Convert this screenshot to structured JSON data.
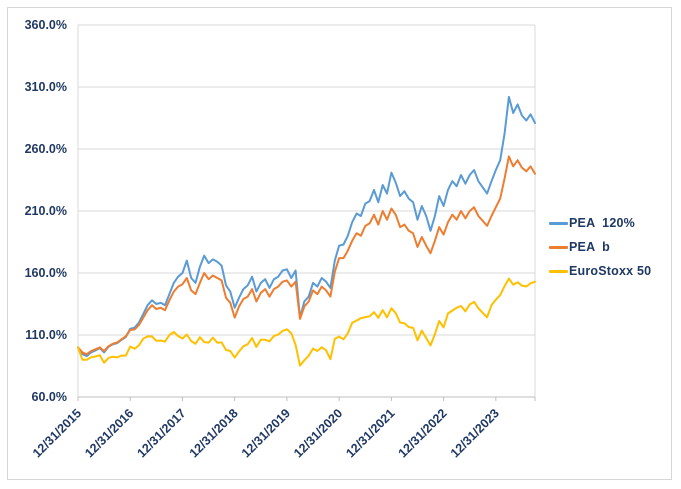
{
  "window": {
    "background": "#FFFFFF",
    "border_color": "#D6D6D6"
  },
  "legend": {
    "position": "right"
  },
  "chart_data": {
    "type": "line",
    "title": "",
    "xlabel": "",
    "ylabel": "",
    "x_start_label": "12/31/2015",
    "points_per_year": 12,
    "x_tick_labels": [
      "12/31/2015",
      "12/31/2016",
      "12/31/2017",
      "12/31/2018",
      "12/31/2019",
      "12/31/2020",
      "12/31/2021",
      "12/31/2022",
      "12/31/2023"
    ],
    "x_tick_rotation_deg": -45,
    "y_axis": {
      "min": 60,
      "max": 360,
      "step": 50,
      "tick_labels": [
        "60.0%",
        "110.0%",
        "160.0%",
        "210.0%",
        "260.0%",
        "310.0%",
        "360.0%"
      ]
    },
    "grid": true,
    "legend_position": "right",
    "axis_label_color": "#1F3864",
    "gridline_color": "#D9D9D9",
    "axis_line_color": "#BFBFBF",
    "series": [
      {
        "name": "PEA  120%",
        "color": "#5B9BD5",
        "values": [
          100,
          94.5,
          93,
          96,
          97.5,
          99.5,
          96,
          100.5,
          102.5,
          103.5,
          106,
          108.5,
          115,
          116,
          120,
          127,
          134,
          138,
          135,
          136,
          134,
          143,
          152,
          157,
          160,
          170,
          156,
          152,
          165,
          174,
          168,
          171,
          169,
          166,
          150,
          145,
          132,
          140,
          147,
          150,
          157,
          145,
          152,
          155,
          148,
          155,
          157,
          162,
          163,
          156,
          162,
          124,
          137,
          141,
          152,
          149,
          156,
          153,
          148,
          170,
          182,
          183,
          190,
          201,
          208,
          206,
          216,
          218,
          227,
          217,
          231,
          224,
          241,
          233,
          222,
          226,
          220,
          217,
          203,
          214,
          206,
          194,
          206,
          222,
          214,
          227,
          234,
          230,
          239,
          232,
          239,
          243,
          234,
          229,
          224,
          234,
          243,
          251,
          272,
          302,
          289,
          296,
          287,
          283,
          288,
          281
        ]
      },
      {
        "name": "PEA  b",
        "color": "#ED7D31",
        "values": [
          100,
          96,
          94.5,
          97,
          98.5,
          100,
          97,
          101,
          103,
          104,
          106.5,
          109,
          114,
          114.5,
          118,
          124,
          130,
          134,
          131,
          132,
          130,
          138,
          145,
          149,
          151,
          156,
          146,
          143,
          152,
          160,
          155,
          158,
          156,
          154,
          140,
          136,
          124,
          133,
          139,
          141,
          147,
          137,
          144,
          147,
          141,
          147,
          149,
          153,
          154,
          149,
          153,
          123,
          133,
          137,
          146,
          143,
          149,
          146,
          141,
          161,
          172,
          172,
          178,
          186,
          192,
          190,
          198,
          200,
          207,
          199,
          210,
          203,
          212,
          207,
          197,
          199,
          194,
          192,
          181,
          189,
          182,
          176,
          186,
          197,
          191,
          201,
          207,
          203,
          210,
          204,
          210,
          213,
          206,
          202,
          198,
          206,
          213,
          220,
          236,
          254,
          246,
          251,
          245,
          242,
          246,
          240
        ]
      },
      {
        "name": "EuroStoxx 50",
        "color": "#FFC000",
        "values": [
          100,
          90.1,
          90.1,
          92,
          92.7,
          93.7,
          87.7,
          91.5,
          92.5,
          91.9,
          93.5,
          93.4,
          100.7,
          98.9,
          101.6,
          107.1,
          108.9,
          108.8,
          105.3,
          105.6,
          104.7,
          110,
          112.4,
          109.2,
          107.2,
          110.4,
          105.2,
          102.9,
          108.2,
          104.3,
          103.9,
          107.9,
          103.8,
          104,
          97.9,
          97.1,
          91.8,
          96.7,
          100.9,
          102.6,
          107.6,
          100.4,
          106.3,
          106.1,
          104.9,
          109.2,
          110.3,
          113.3,
          114.6,
          111.4,
          101.9,
          85.3,
          89.6,
          93.3,
          99,
          97.1,
          100.2,
          97.7,
          90.5,
          106.9,
          108.7,
          106.5,
          111.3,
          119.9,
          121.6,
          123.6,
          124.4,
          125.1,
          128.4,
          123.9,
          130.1,
          124.3,
          131.5,
          127.7,
          120.1,
          119.4,
          116.4,
          115.9,
          105.7,
          113.5,
          107.6,
          101.5,
          110.7,
          121.3,
          116.1,
          127.4,
          129.7,
          132,
          133.4,
          129.1,
          134.6,
          136.8,
          131.5,
          127.8,
          124.3,
          134.1,
          138.4,
          142.2,
          149.3,
          155.5,
          150.6,
          152.5,
          149.8,
          149.1,
          151.7,
          153
        ]
      }
    ]
  }
}
